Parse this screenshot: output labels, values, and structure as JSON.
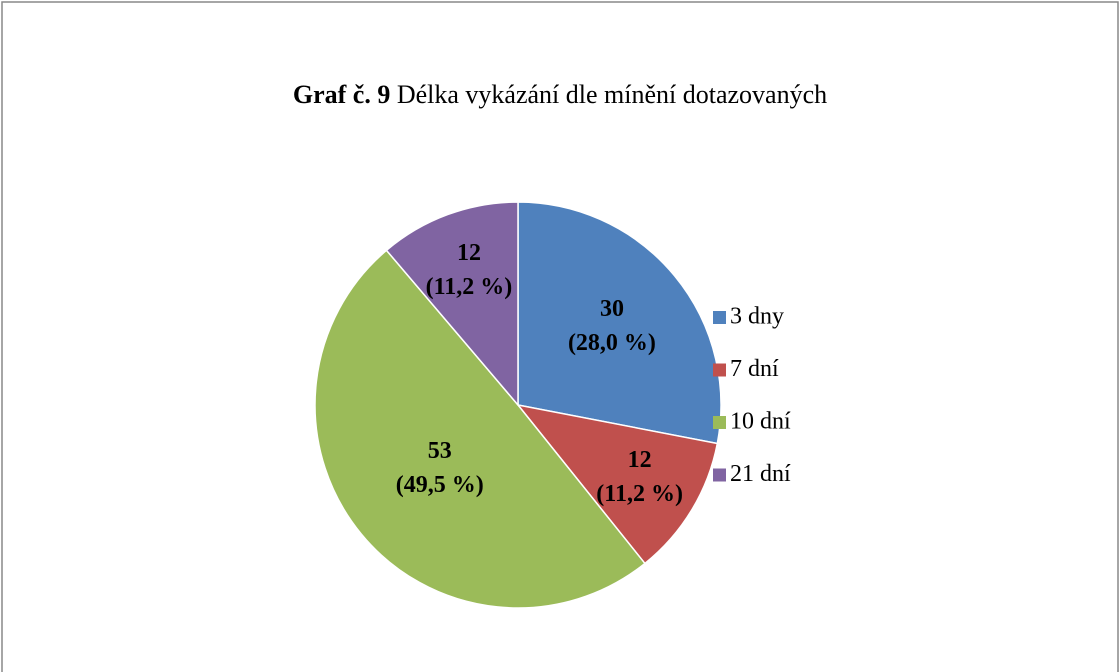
{
  "chart_data": {
    "type": "pie",
    "title_label": "Graf č. 9",
    "title": "Délka vykázání dle mínění dotazovaných",
    "categories": [
      "3 dny",
      "7 dní",
      "10 dní",
      "21 dní"
    ],
    "values": [
      30,
      12,
      53,
      12
    ],
    "percent_labels": [
      "(28,0 %)",
      "(11,2 %)",
      "(49,5 %)",
      "(11,2 %)"
    ],
    "colors": [
      "#4f81bd",
      "#c0504d",
      "#9bbb59",
      "#8064a2"
    ],
    "legend": "right"
  }
}
